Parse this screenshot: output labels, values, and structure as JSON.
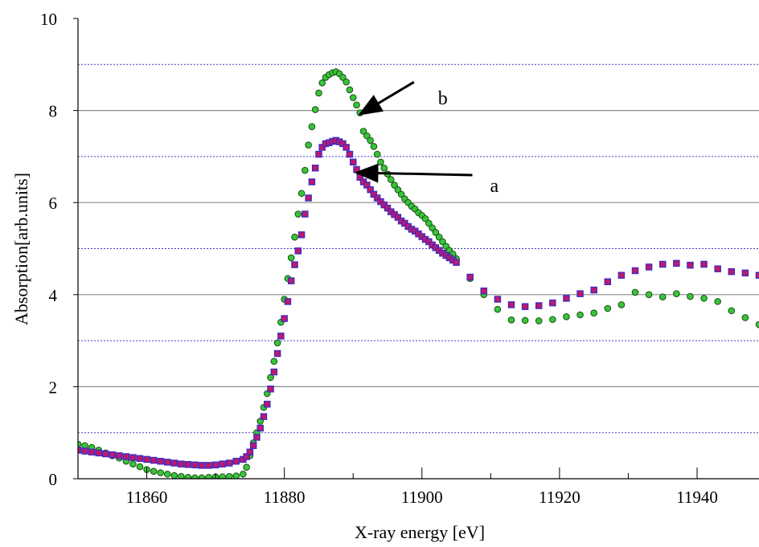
{
  "chart_data": {
    "type": "scatter",
    "title": "",
    "xlabel": "X-ray energy [eV]",
    "ylabel": "Absorption[arb.units]",
    "xlim": [
      11850,
      11949
    ],
    "ylim": [
      0,
      10
    ],
    "x_ticks": [
      11860,
      11880,
      11900,
      11920,
      11940
    ],
    "y_ticks": [
      0,
      2,
      4,
      6,
      8,
      10
    ],
    "grid": "major solid grey, minor dotted blue at odd values",
    "annotations": [
      {
        "text": "a",
        "points_to": [
          11890.5,
          6.65
        ]
      },
      {
        "text": "b",
        "points_to": [
          11891,
          7.92
        ]
      }
    ],
    "series": [
      {
        "color": "#c0186a",
        "border": "#3d2bc4",
        "marker": "square",
        "x": [
          11850,
          11851,
          11852,
          11853,
          11854,
          11855,
          11856,
          11857,
          11858,
          11859,
          11860,
          11861,
          11862,
          11863,
          11864,
          11865,
          11866,
          11867,
          11868,
          11869,
          11870,
          11871,
          11872,
          11873,
          11874,
          11874.5,
          11875,
          11875.5,
          11876,
          11876.5,
          11877,
          11877.5,
          11878,
          11878.5,
          11879,
          11879.5,
          11880,
          11880.5,
          11881,
          11881.5,
          11882,
          11882.5,
          11883,
          11883.5,
          11884,
          11884.5,
          11885,
          11885.5,
          11886,
          11886.5,
          11887,
          11887.5,
          11888,
          11888.5,
          11889,
          11889.5,
          11890,
          11890.5,
          11891,
          11891.5,
          11892,
          11892.5,
          11893,
          11893.5,
          11894,
          11894.5,
          11895,
          11895.5,
          11896,
          11896.5,
          11897,
          11897.5,
          11898,
          11898.5,
          11899,
          11899.5,
          11900,
          11900.5,
          11901,
          11901.5,
          11902,
          11902.5,
          11903,
          11903.5,
          11904,
          11904.5,
          11905,
          11907,
          11909,
          11911,
          11913,
          11915,
          11917,
          11919,
          11921,
          11923,
          11925,
          11927,
          11929,
          11931,
          11933,
          11935,
          11937,
          11939,
          11941,
          11943,
          11945,
          11947,
          11949
        ],
        "y": [
          0.62,
          0.6,
          0.58,
          0.56,
          0.54,
          0.52,
          0.5,
          0.48,
          0.46,
          0.44,
          0.42,
          0.4,
          0.38,
          0.36,
          0.34,
          0.32,
          0.31,
          0.3,
          0.29,
          0.29,
          0.3,
          0.32,
          0.34,
          0.38,
          0.42,
          0.48,
          0.58,
          0.72,
          0.9,
          1.1,
          1.35,
          1.62,
          1.95,
          2.32,
          2.72,
          3.1,
          3.48,
          3.85,
          4.3,
          4.65,
          4.95,
          5.3,
          5.75,
          6.1,
          6.45,
          6.75,
          7.05,
          7.2,
          7.28,
          7.3,
          7.33,
          7.35,
          7.32,
          7.28,
          7.2,
          7.05,
          6.88,
          6.72,
          6.55,
          6.45,
          6.38,
          6.28,
          6.18,
          6.1,
          6.02,
          5.95,
          5.88,
          5.8,
          5.74,
          5.68,
          5.6,
          5.55,
          5.48,
          5.42,
          5.38,
          5.32,
          5.26,
          5.2,
          5.15,
          5.08,
          5.02,
          4.96,
          4.9,
          4.85,
          4.8,
          4.75,
          4.7,
          4.38,
          4.08,
          3.9,
          3.78,
          3.74,
          3.76,
          3.82,
          3.92,
          4.02,
          4.1,
          4.28,
          4.42,
          4.52,
          4.6,
          4.66,
          4.68,
          4.64,
          4.66,
          4.56,
          4.5,
          4.47,
          4.42
        ]
      },
      {
        "color": "#37c53a",
        "border": "#1a4d12",
        "marker": "circle",
        "x": [
          11850,
          11851,
          11852,
          11853,
          11854,
          11855,
          11856,
          11857,
          11858,
          11859,
          11860,
          11861,
          11862,
          11863,
          11864,
          11865,
          11866,
          11867,
          11868,
          11869,
          11870,
          11871,
          11872,
          11873,
          11874,
          11874.5,
          11875,
          11875.5,
          11876,
          11876.5,
          11877,
          11877.5,
          11878,
          11878.5,
          11879,
          11879.5,
          11880,
          11880.5,
          11881,
          11881.5,
          11882,
          11882.5,
          11883,
          11883.5,
          11884,
          11884.5,
          11885,
          11885.5,
          11886,
          11886.5,
          11887,
          11887.5,
          11888,
          11888.5,
          11889,
          11889.5,
          11890,
          11890.5,
          11891,
          11891.5,
          11892,
          11892.5,
          11893,
          11893.5,
          11894,
          11894.5,
          11895,
          11895.5,
          11896,
          11896.5,
          11897,
          11897.5,
          11898,
          11898.5,
          11899,
          11899.5,
          11900,
          11900.5,
          11901,
          11901.5,
          11902,
          11902.5,
          11903,
          11903.5,
          11904,
          11904.5,
          11905,
          11907,
          11909,
          11911,
          11913,
          11915,
          11917,
          11919,
          11921,
          11923,
          11925,
          11927,
          11929,
          11931,
          11933,
          11935,
          11937,
          11939,
          11941,
          11943,
          11945,
          11947,
          11949
        ],
        "y": [
          0.75,
          0.72,
          0.68,
          0.62,
          0.56,
          0.5,
          0.45,
          0.38,
          0.32,
          0.26,
          0.2,
          0.16,
          0.13,
          0.1,
          0.07,
          0.05,
          0.03,
          0.02,
          0.02,
          0.03,
          0.04,
          0.04,
          0.05,
          0.06,
          0.1,
          0.25,
          0.5,
          0.78,
          1.0,
          1.25,
          1.55,
          1.85,
          2.2,
          2.55,
          2.95,
          3.4,
          3.9,
          4.35,
          4.8,
          5.25,
          5.75,
          6.2,
          6.7,
          7.25,
          7.65,
          8.02,
          8.38,
          8.6,
          8.72,
          8.78,
          8.82,
          8.84,
          8.8,
          8.72,
          8.62,
          8.45,
          8.28,
          8.12,
          7.95,
          7.55,
          7.45,
          7.35,
          7.22,
          7.05,
          6.88,
          6.75,
          6.62,
          6.5,
          6.38,
          6.28,
          6.18,
          6.08,
          6.0,
          5.92,
          5.86,
          5.78,
          5.72,
          5.65,
          5.55,
          5.45,
          5.35,
          5.25,
          5.15,
          5.05,
          4.96,
          4.88,
          4.78,
          4.35,
          4.0,
          3.68,
          3.45,
          3.44,
          3.43,
          3.46,
          3.52,
          3.56,
          3.6,
          3.7,
          3.78,
          4.05,
          4.0,
          3.95,
          4.02,
          3.96,
          3.92,
          3.85,
          3.65,
          3.5,
          3.35
        ]
      }
    ]
  }
}
